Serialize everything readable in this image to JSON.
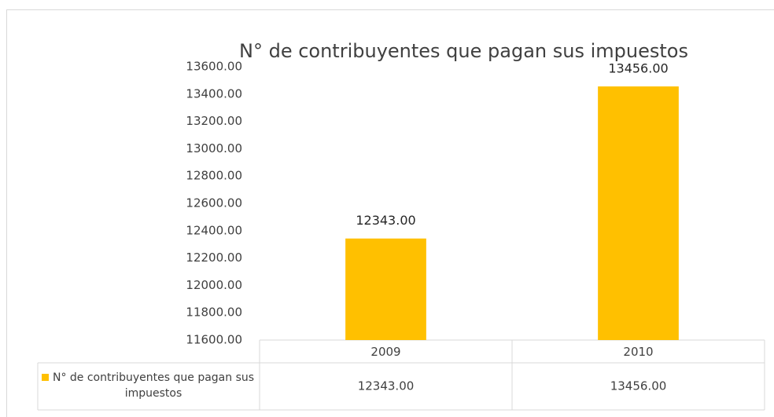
{
  "chart_data": {
    "type": "bar",
    "title": "N° de contribuyentes que pagan sus impuestos",
    "categories": [
      "2009",
      "2010"
    ],
    "series": [
      {
        "name": "N° de contribuyentes que pagan sus impuestos",
        "color": "#ffc000",
        "values": [
          12343,
          13456
        ],
        "value_labels": [
          "12343.00",
          "13456.00"
        ]
      }
    ],
    "ylim": [
      11600,
      13600
    ],
    "yticks": [
      {
        "value": 11600,
        "label": "11600.00"
      },
      {
        "value": 11800,
        "label": "11800.00"
      },
      {
        "value": 12000,
        "label": "12000.00"
      },
      {
        "value": 12200,
        "label": "12200.00"
      },
      {
        "value": 12400,
        "label": "12400.00"
      },
      {
        "value": 12600,
        "label": "12600.00"
      },
      {
        "value": 12800,
        "label": "12800.00"
      },
      {
        "value": 13000,
        "label": "13000.00"
      },
      {
        "value": 13200,
        "label": "13200.00"
      },
      {
        "value": 13400,
        "label": "13400.00"
      },
      {
        "value": 13600,
        "label": "13600.00"
      }
    ],
    "grid": false,
    "data_table": true
  }
}
